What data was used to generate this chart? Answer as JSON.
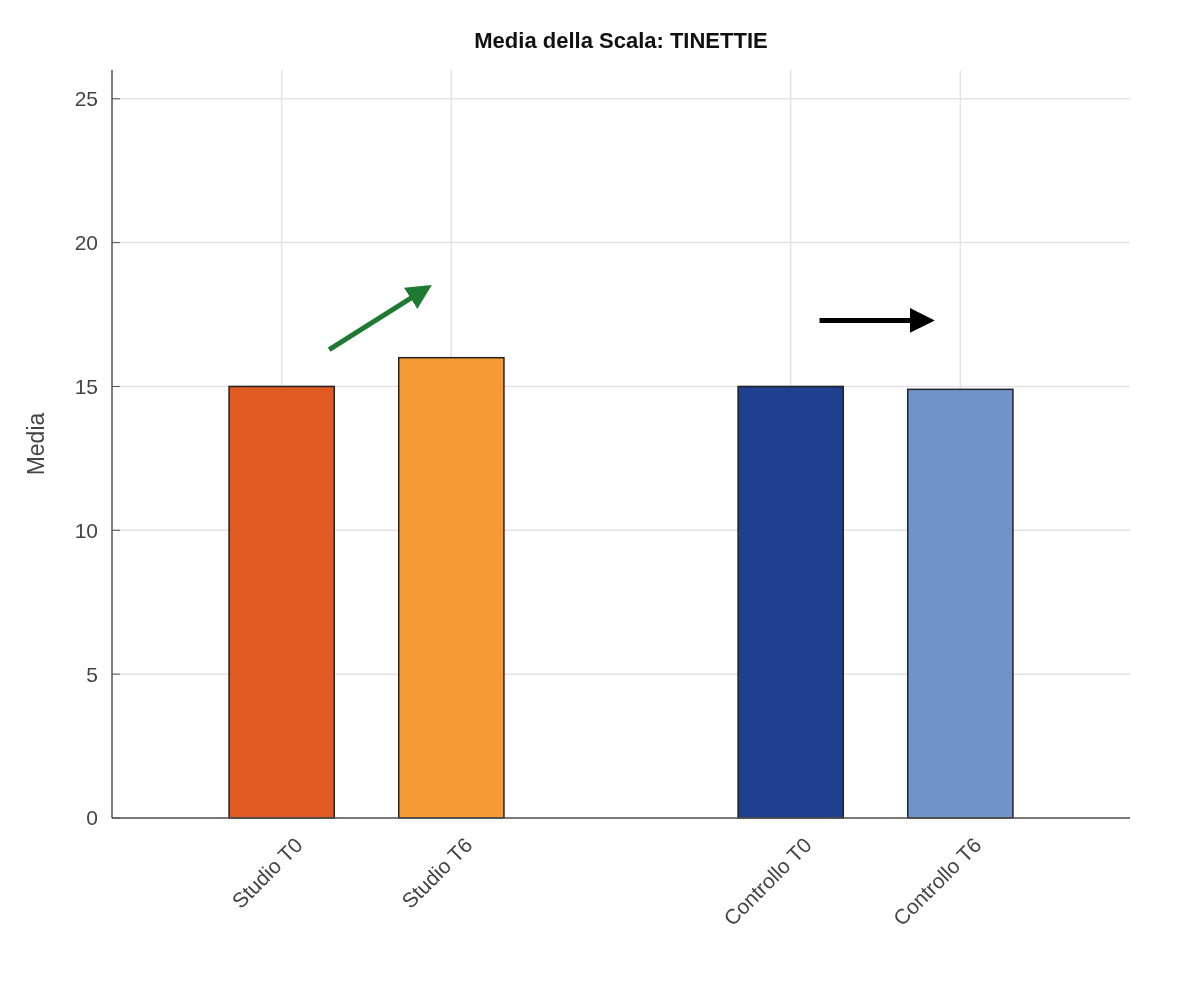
{
  "chart_data": {
    "type": "bar",
    "title": "Media della Scala: TINETTIE",
    "ylabel": "Media",
    "categories": [
      "Studio T0",
      "Studio T6",
      null,
      "Controllo T0",
      "Controllo T6"
    ],
    "values": [
      15,
      16,
      null,
      15,
      14.9
    ],
    "colors": [
      "#e05a24",
      "#f59a35",
      null,
      "#213f8f",
      "#7193cb"
    ],
    "ylim": [
      0,
      26
    ],
    "yticks": [
      0,
      5,
      10,
      15,
      20,
      25
    ],
    "grid": true
  }
}
